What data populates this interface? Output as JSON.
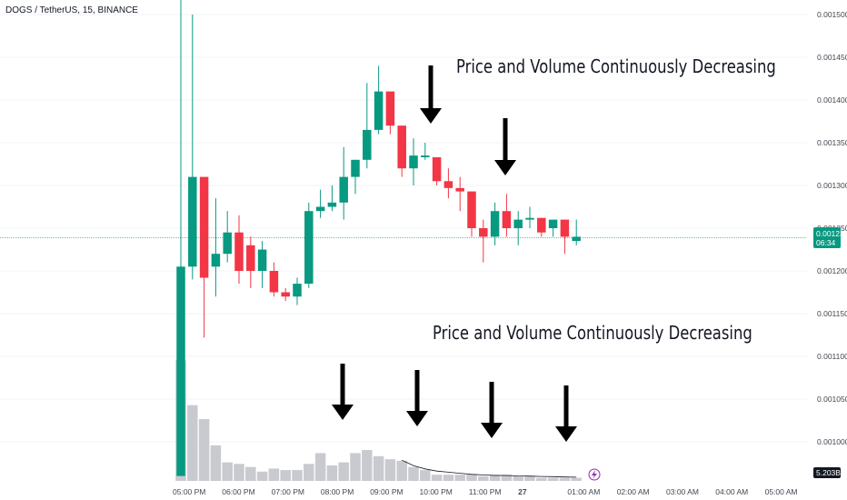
{
  "header": {
    "symbol": "DOGS / TetherUS, 15, BINANCE"
  },
  "annotations": [
    {
      "text": "Price and Volume Continuously Decreasing"
    },
    {
      "text": "Price and Volume Continuously Decreasing"
    }
  ],
  "colors": {
    "up": "#089981",
    "down": "#f23645",
    "volume": "#c9cacf",
    "arrow": "#000000",
    "last_price_line": "#089981"
  },
  "chart_data": {
    "type": "candlestick",
    "symbol": "DOGS / TetherUS",
    "interval": "15",
    "exchange": "BINANCE",
    "y_axis": {
      "range": [
        0.00096,
        0.00153
      ],
      "ticks": [
        "0.0015000",
        "0.0014500",
        "0.0014000",
        "0.0013500",
        "0.0013000",
        "0.0012500",
        "0.0012000",
        "0.0011500",
        "0.0011000",
        "0.0010500",
        "0.0010000"
      ]
    },
    "x_axis": {
      "ticks": [
        "05:00 PM",
        "06:00 PM",
        "07:00 PM",
        "08:00 PM",
        "09:00 PM",
        "10:00 PM",
        "11:00 PM",
        "27",
        "01:00 AM",
        "02:00 AM",
        "03:00 AM",
        "04:00 AM",
        "05:00 AM"
      ]
    },
    "last_price": {
      "value": "0.0012388",
      "countdown": "06:34"
    },
    "volume_last": "5.203B",
    "candles": [
      {
        "o": 0.00096,
        "h": 0.00153,
        "l": 0.00096,
        "c": 0.001205
      },
      {
        "o": 0.001205,
        "h": 0.0015,
        "l": 0.00119,
        "c": 0.00131
      },
      {
        "o": 0.00131,
        "h": 0.00131,
        "l": 0.001122,
        "c": 0.001192
      },
      {
        "o": 0.001205,
        "h": 0.001285,
        "l": 0.00117,
        "c": 0.00122
      },
      {
        "o": 0.00122,
        "h": 0.00127,
        "l": 0.00121,
        "c": 0.001245
      },
      {
        "o": 0.001245,
        "h": 0.001265,
        "l": 0.001185,
        "c": 0.0012
      },
      {
        "o": 0.00123,
        "h": 0.00124,
        "l": 0.00118,
        "c": 0.0012
      },
      {
        "o": 0.0012,
        "h": 0.001235,
        "l": 0.00118,
        "c": 0.001225
      },
      {
        "o": 0.0012,
        "h": 0.00121,
        "l": 0.00117,
        "c": 0.001175
      },
      {
        "o": 0.001175,
        "h": 0.00118,
        "l": 0.001165,
        "c": 0.00117
      },
      {
        "o": 0.00117,
        "h": 0.001192,
        "l": 0.00116,
        "c": 0.001185
      },
      {
        "o": 0.001185,
        "h": 0.00128,
        "l": 0.00118,
        "c": 0.00127
      },
      {
        "o": 0.00127,
        "h": 0.001295,
        "l": 0.001262,
        "c": 0.001275
      },
      {
        "o": 0.001275,
        "h": 0.0013,
        "l": 0.00127,
        "c": 0.00128
      },
      {
        "o": 0.00128,
        "h": 0.001345,
        "l": 0.00126,
        "c": 0.00131
      },
      {
        "o": 0.00131,
        "h": 0.00133,
        "l": 0.00129,
        "c": 0.00133
      },
      {
        "o": 0.00133,
        "h": 0.00142,
        "l": 0.00132,
        "c": 0.001365
      },
      {
        "o": 0.001365,
        "h": 0.00144,
        "l": 0.00136,
        "c": 0.00141
      },
      {
        "o": 0.00141,
        "h": 0.00141,
        "l": 0.00136,
        "c": 0.00137
      },
      {
        "o": 0.00137,
        "h": 0.00137,
        "l": 0.00131,
        "c": 0.00132
      },
      {
        "o": 0.00132,
        "h": 0.001355,
        "l": 0.0013,
        "c": 0.001335
      },
      {
        "o": 0.001333,
        "h": 0.00135,
        "l": 0.00133,
        "c": 0.001335
      },
      {
        "o": 0.001333,
        "h": 0.001333,
        "l": 0.0013,
        "c": 0.001305
      },
      {
        "o": 0.001305,
        "h": 0.00132,
        "l": 0.001285,
        "c": 0.001297
      },
      {
        "o": 0.001297,
        "h": 0.00131,
        "l": 0.00127,
        "c": 0.001293
      },
      {
        "o": 0.001293,
        "h": 0.001293,
        "l": 0.00124,
        "c": 0.00125
      },
      {
        "o": 0.00125,
        "h": 0.00126,
        "l": 0.00121,
        "c": 0.00124
      },
      {
        "o": 0.00124,
        "h": 0.00128,
        "l": 0.00123,
        "c": 0.00127
      },
      {
        "o": 0.00127,
        "h": 0.00129,
        "l": 0.00124,
        "c": 0.00125
      },
      {
        "o": 0.00125,
        "h": 0.00127,
        "l": 0.00123,
        "c": 0.00126
      },
      {
        "o": 0.00126,
        "h": 0.001275,
        "l": 0.00125,
        "c": 0.001262
      },
      {
        "o": 0.001262,
        "h": 0.001262,
        "l": 0.00124,
        "c": 0.001245
      },
      {
        "o": 0.00125,
        "h": 0.00126,
        "l": 0.00124,
        "c": 0.00126
      },
      {
        "o": 0.00126,
        "h": 0.00126,
        "l": 0.00122,
        "c": 0.00124
      },
      {
        "o": 0.001235,
        "h": 0.00126,
        "l": 0.00123,
        "c": 0.00124
      }
    ],
    "volume": [
      78,
      49,
      40,
      23,
      12,
      11,
      9,
      6,
      8,
      7,
      7,
      11,
      18,
      10,
      12,
      18,
      20,
      16,
      14,
      13,
      9,
      7,
      4,
      4,
      4,
      4,
      3,
      4,
      4,
      3,
      3,
      2,
      2,
      2,
      2
    ],
    "volume_ma": [
      0.0,
      0,
      0,
      0,
      0,
      0,
      0,
      0,
      0,
      0,
      0,
      0,
      0,
      0,
      0,
      0,
      0,
      0,
      0,
      19,
      14,
      11,
      9,
      8,
      7,
      6,
      5.5,
      5,
      5,
      4.6,
      4.4,
      4.1,
      3.9,
      3.6,
      3.4
    ]
  }
}
